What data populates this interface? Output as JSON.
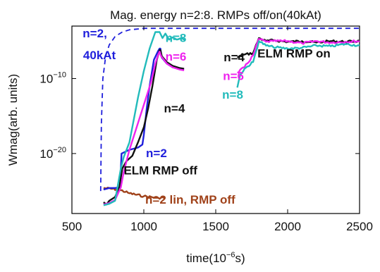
{
  "chart_data": {
    "type": "line",
    "title": "Mag. energy n=2:8. RMPs off/on(40kAt)",
    "xlabel_main": "time(10",
    "xlabel_exp": "−6",
    "xlabel_tail": "s)",
    "ylabel": "Wmag(arb. units)",
    "xlim": [
      500,
      2500
    ],
    "ylog_exp_range": [
      -28,
      -3
    ],
    "y_scale": "log",
    "x_ticks": [
      {
        "value": 500,
        "label": "500"
      },
      {
        "value": 1000,
        "label": "1000"
      },
      {
        "value": 1500,
        "label": "1500"
      },
      {
        "value": 2000,
        "label": "2000"
      },
      {
        "value": 2500,
        "label": "2500"
      }
    ],
    "y_ticks": [
      {
        "exp": -10,
        "base": "10",
        "sup": "−10"
      },
      {
        "exp": -20,
        "base": "10",
        "sup": "−20"
      }
    ],
    "series": [
      {
        "name": "n=2, 40kAt",
        "color": "#1f1fdc",
        "style": "dashed",
        "x": [
          700,
          705,
          715,
          735,
          760,
          800,
          850,
          900,
          950,
          1000,
          2500
        ],
        "y": [
          -25,
          -16,
          -10,
          -7,
          -5.5,
          -4.4,
          -3.8,
          -3.5,
          -3.4,
          -3.3,
          -3.3
        ]
      },
      {
        "name": "n=2 lin, RMP off",
        "color": "#a0421a",
        "style": "solid",
        "noisy": true,
        "x": [
          720,
          820,
          840,
          900,
          1000,
          1100,
          1150
        ],
        "y": [
          -24.6,
          -24.8,
          -24.9,
          -25.3,
          -25.7,
          -25.9,
          -25.9
        ]
      },
      {
        "name": "n=2",
        "color": "#1f1fdc",
        "style": "solid",
        "x": [
          720,
          760,
          800,
          835,
          845,
          900,
          960,
          990,
          1000,
          1020,
          1040,
          1070,
          1100,
          1110,
          1115,
          1125,
          1160,
          1200,
          1250,
          1280
        ],
        "y": [
          -24.8,
          -24.6,
          -24.6,
          -24.5,
          -20,
          -19.5,
          -19.2,
          -18.8,
          -17.5,
          -14,
          -11,
          -7.5,
          -6.3,
          -6.0,
          -6.0,
          -7.2,
          -8.0,
          -8.5,
          -8.7,
          -8.8
        ]
      },
      {
        "name": "n=4",
        "color": "#111111",
        "style": "solid",
        "x": [
          720,
          740,
          760,
          800,
          830,
          850,
          880,
          920,
          960,
          1000,
          1030,
          1060,
          1090,
          1110,
          1115,
          1125,
          1160,
          1200,
          1250,
          1280
        ],
        "y": [
          -26.5,
          -26.8,
          -26.3,
          -25.8,
          -24.5,
          -22,
          -21,
          -20.3,
          -18.5,
          -16.5,
          -14,
          -11,
          -7.5,
          -6.2,
          -6.2,
          -7.0,
          -7.8,
          -8.3,
          -8.6,
          -8.7
        ]
      },
      {
        "name": "n=6",
        "color": "#ee22ee",
        "style": "solid",
        "x": [
          720,
          760,
          800,
          840,
          860,
          900,
          1000,
          1050,
          1080,
          1100,
          1110,
          1120,
          1160,
          1200,
          1250,
          1280
        ],
        "y": [
          -26.8,
          -26.6,
          -26.2,
          -24.5,
          -22.5,
          -19.5,
          -13.5,
          -10.5,
          -8,
          -6.8,
          -6.4,
          -7.0,
          -8.0,
          -8.5,
          -8.8,
          -8.9
        ]
      },
      {
        "name": "n=8",
        "color": "#22bbbb",
        "style": "solid",
        "x": [
          720,
          760,
          800,
          840,
          860,
          900,
          960,
          1000,
          1040,
          1080,
          1110,
          1130,
          1150,
          1175,
          1200,
          1230,
          1260,
          1290
        ],
        "y": [
          -26.9,
          -26.7,
          -26.3,
          -22,
          -20.5,
          -18.5,
          -12.5,
          -9,
          -6,
          -3.8,
          -3.8,
          -4.6,
          -4.0,
          -4.8,
          -4.5,
          -4.8,
          -4.6,
          -4.9
        ]
      },
      {
        "name": "n=4",
        "color": "#111111",
        "style": "solid",
        "noisy": true,
        "x": [
          1650,
          1700,
          1760,
          1800,
          1850,
          1900,
          2000,
          2100,
          2200,
          2300,
          2400,
          2500
        ],
        "y": [
          -7.2,
          -6.8,
          -6.6,
          -4.6,
          -5.0,
          -4.9,
          -5.1,
          -5.0,
          -5.2,
          -5.0,
          -5.1,
          -5.0
        ]
      },
      {
        "name": "n=6",
        "color": "#ee22ee",
        "style": "solid",
        "noisy": true,
        "x": [
          1650,
          1700,
          1760,
          1800,
          1850,
          1900,
          2000,
          2100,
          2200,
          2300,
          2400,
          2500
        ],
        "y": [
          -9.2,
          -8.5,
          -6.9,
          -4.7,
          -5.1,
          -5.0,
          -5.0,
          -5.3,
          -5.0,
          -5.2,
          -5.1,
          -5.0
        ]
      },
      {
        "name": "n=8",
        "color": "#22bbbb",
        "style": "solid",
        "noisy": true,
        "x": [
          1650,
          1670,
          1700,
          1760,
          1800,
          1850,
          1900,
          2000,
          2100,
          2200,
          2300,
          2400,
          2500
        ],
        "y": [
          -11.2,
          -9.5,
          -8.7,
          -7.8,
          -5.0,
          -5.6,
          -5.8,
          -6.0,
          -5.9,
          -5.6,
          -5.7,
          -5.4,
          -5.6
        ]
      }
    ],
    "annotations": [
      {
        "text": "n=2,",
        "color": "#1f1fdc",
        "x": 575,
        "y": -4.5
      },
      {
        "text": "40kAt",
        "color": "#1f1fdc",
        "x": 578,
        "y": -7.4
      },
      {
        "text": "n=8",
        "color": "#22bbbb",
        "x": 1150,
        "y": -5.1
      },
      {
        "text": "n=6",
        "color": "#ee22ee",
        "x": 1150,
        "y": -7.6
      },
      {
        "text": "n=4",
        "color": "#111111",
        "x": 1140,
        "y": -14.5
      },
      {
        "text": "n=2",
        "color": "#1f1fdc",
        "x": 1015,
        "y": -20.5
      },
      {
        "text": "ELM RMP off",
        "color": "#111111",
        "x": 860,
        "y": -22.8
      },
      {
        "text": "n=2 lin, RMP off",
        "color": "#a0421a",
        "x": 1010,
        "y": -26.7
      },
      {
        "text": "n=4",
        "color": "#111111",
        "x": 1555,
        "y": -7.7
      },
      {
        "text": "ELM RMP on",
        "color": "#111111",
        "x": 1790,
        "y": -7.2
      },
      {
        "text": "n=6",
        "color": "#ee22ee",
        "x": 1550,
        "y": -10.2
      },
      {
        "text": "n=8",
        "color": "#22bbbb",
        "x": 1545,
        "y": -12.7
      }
    ],
    "grid": false,
    "legend": "none"
  }
}
